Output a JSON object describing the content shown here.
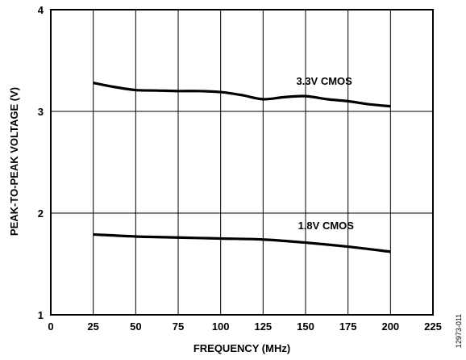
{
  "chart_data": {
    "type": "line",
    "xlabel": "FREQUENCY (MHz)",
    "ylabel": "PEAK-TO-PEAK VOLTAGE (V)",
    "xlim": [
      0,
      225
    ],
    "ylim": [
      1,
      4
    ],
    "xticks": [
      0,
      25,
      50,
      75,
      100,
      125,
      150,
      175,
      200,
      225
    ],
    "yticks": [
      1,
      2,
      3,
      4
    ],
    "grid": true,
    "legend": "none",
    "series": [
      {
        "name": "3.3V CMOS",
        "color": "#000000",
        "x": [
          25,
          37.5,
          50,
          62.5,
          75,
          87.5,
          100,
          112.5,
          125,
          137.5,
          150,
          162.5,
          175,
          187.5,
          200
        ],
        "y": [
          3.28,
          3.24,
          3.21,
          3.205,
          3.2,
          3.2,
          3.19,
          3.16,
          3.12,
          3.14,
          3.15,
          3.12,
          3.1,
          3.07,
          3.05
        ]
      },
      {
        "name": "1.8V CMOS",
        "color": "#000000",
        "x": [
          25,
          50,
          75,
          100,
          125,
          150,
          175,
          200
        ],
        "y": [
          1.79,
          1.77,
          1.76,
          1.75,
          1.74,
          1.71,
          1.67,
          1.62
        ]
      }
    ]
  },
  "figure_id": "12973-011"
}
